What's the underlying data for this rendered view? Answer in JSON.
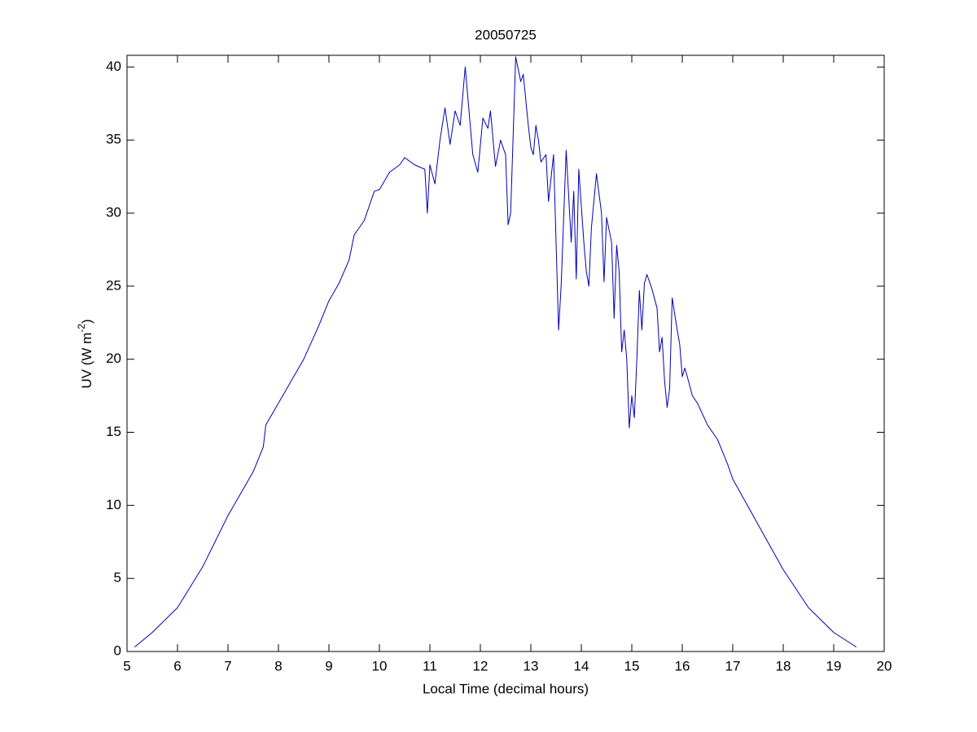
{
  "chart_data": {
    "type": "line",
    "title": "20050725",
    "xlabel": "Local Time (decimal hours)",
    "ylabel": [
      "UV (W m",
      "-2",
      ")"
    ],
    "xlim": [
      5,
      20
    ],
    "xticks": [
      5,
      6,
      7,
      8,
      9,
      10,
      11,
      12,
      13,
      14,
      15,
      16,
      17,
      18,
      19,
      20
    ],
    "ylim": [
      0,
      40.8
    ],
    "yticks": [
      0,
      5,
      10,
      15,
      20,
      25,
      30,
      35,
      40
    ],
    "grid": false,
    "series": [
      {
        "color": "#0000b4",
        "x": [
          5.15,
          5.5,
          6.0,
          6.5,
          7.0,
          7.5,
          7.7,
          7.75,
          8.0,
          8.5,
          8.8,
          9.0,
          9.2,
          9.4,
          9.5,
          9.7,
          9.9,
          10.0,
          10.2,
          10.4,
          10.5,
          10.7,
          10.9,
          10.95,
          11.0,
          11.1,
          11.2,
          11.3,
          11.4,
          11.5,
          11.6,
          11.65,
          11.7,
          11.75,
          11.85,
          11.95,
          12.05,
          12.15,
          12.2,
          12.3,
          12.4,
          12.5,
          12.55,
          12.6,
          12.7,
          12.8,
          12.85,
          12.95,
          13.0,
          13.05,
          13.1,
          13.15,
          13.2,
          13.3,
          13.35,
          13.45,
          13.55,
          13.6,
          13.7,
          13.8,
          13.85,
          13.9,
          13.95,
          14.05,
          14.1,
          14.15,
          14.2,
          14.3,
          14.4,
          14.45,
          14.5,
          14.6,
          14.65,
          14.7,
          14.75,
          14.8,
          14.85,
          14.9,
          14.95,
          15.0,
          15.05,
          15.1,
          15.15,
          15.2,
          15.25,
          15.3,
          15.4,
          15.5,
          15.55,
          15.6,
          15.65,
          15.7,
          15.75,
          15.8,
          15.9,
          15.95,
          16.0,
          16.05,
          16.1,
          16.2,
          16.3,
          16.5,
          16.7,
          16.9,
          17.0,
          17.5,
          18.0,
          18.5,
          19.0,
          19.45
        ],
        "values": [
          0.3,
          1.3,
          3.0,
          5.8,
          9.3,
          12.3,
          14.0,
          15.5,
          17.0,
          20.0,
          22.3,
          24.0,
          25.2,
          26.8,
          28.5,
          29.5,
          31.5,
          31.6,
          32.8,
          33.3,
          33.8,
          33.3,
          33.0,
          30.0,
          33.3,
          32.0,
          35.0,
          37.2,
          34.7,
          37.0,
          36.0,
          38.0,
          40.0,
          38.0,
          34.0,
          32.8,
          36.5,
          35.8,
          37.0,
          33.2,
          35.0,
          34.0,
          29.2,
          30.0,
          40.7,
          39.0,
          39.5,
          36.0,
          34.5,
          34.0,
          36.0,
          35.0,
          33.5,
          34.0,
          30.8,
          34.0,
          22.0,
          25.0,
          34.3,
          28.0,
          31.5,
          25.5,
          33.0,
          28.0,
          26.0,
          25.0,
          29.0,
          32.7,
          30.0,
          25.3,
          29.7,
          28.0,
          22.8,
          27.8,
          26.0,
          20.5,
          22.0,
          20.0,
          15.3,
          17.5,
          16.0,
          20.0,
          24.7,
          22.0,
          25.2,
          25.8,
          24.8,
          23.5,
          20.5,
          21.5,
          18.5,
          16.7,
          18.0,
          24.2,
          22.0,
          21.0,
          18.8,
          19.4,
          18.8,
          17.5,
          17.0,
          15.5,
          14.5,
          12.8,
          11.8,
          8.7,
          5.6,
          3.0,
          1.3,
          0.3
        ]
      }
    ]
  }
}
